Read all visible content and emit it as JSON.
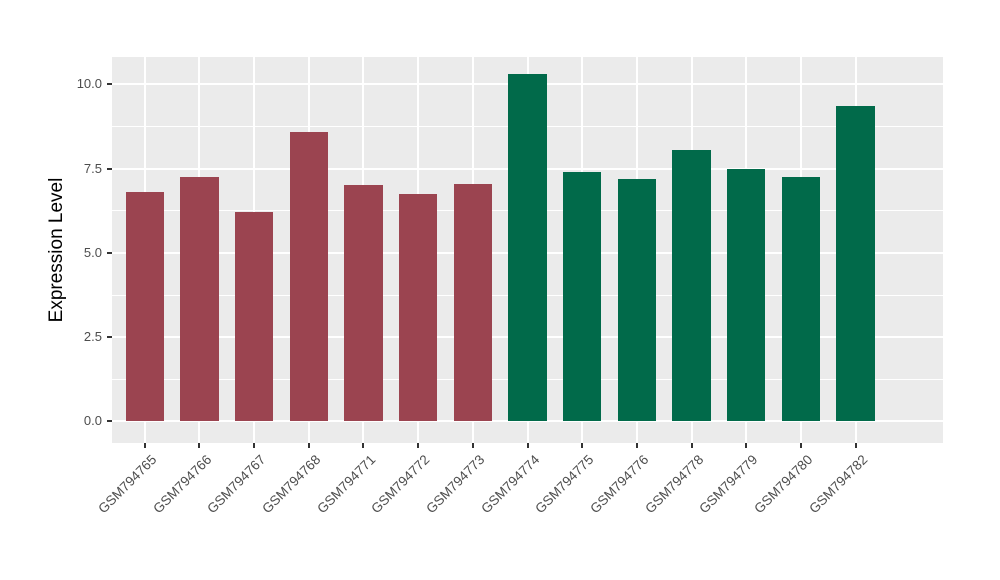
{
  "chart_data": {
    "type": "bar",
    "title": "",
    "xlabel": "",
    "ylabel": "Expression Level",
    "categories": [
      "GSM794765",
      "GSM794766",
      "GSM794767",
      "GSM794768",
      "GSM794771",
      "GSM794772",
      "GSM794773",
      "GSM794774",
      "GSM794775",
      "GSM794776",
      "GSM794778",
      "GSM794779",
      "GSM794780",
      "GSM794782"
    ],
    "values": [
      6.8,
      7.25,
      6.2,
      8.6,
      7.0,
      6.75,
      7.05,
      10.3,
      7.4,
      7.2,
      8.05,
      7.5,
      7.25,
      9.35
    ],
    "bar_colors": [
      "#9B4450",
      "#9B4450",
      "#9B4450",
      "#9B4450",
      "#9B4450",
      "#9B4450",
      "#9B4450",
      "#016A4A",
      "#016A4A",
      "#016A4A",
      "#016A4A",
      "#016A4A",
      "#016A4A",
      "#016A4A"
    ],
    "group_colors": {
      "left_group": "#9B4450",
      "right_group": "#016A4A"
    },
    "yticks": [
      0.0,
      2.5,
      5.0,
      7.5,
      10.0
    ],
    "ytick_labels": [
      "0.0",
      "2.5",
      "5.0",
      "7.5",
      "10.0"
    ],
    "ylim": [
      -0.64,
      10.81
    ],
    "grid": true,
    "legend": "none",
    "panel_background": "#EBEBEB",
    "grid_color": "#FFFFFF",
    "tick_label_color": "#4D4D4D",
    "tick_mark_color": "#333333"
  }
}
